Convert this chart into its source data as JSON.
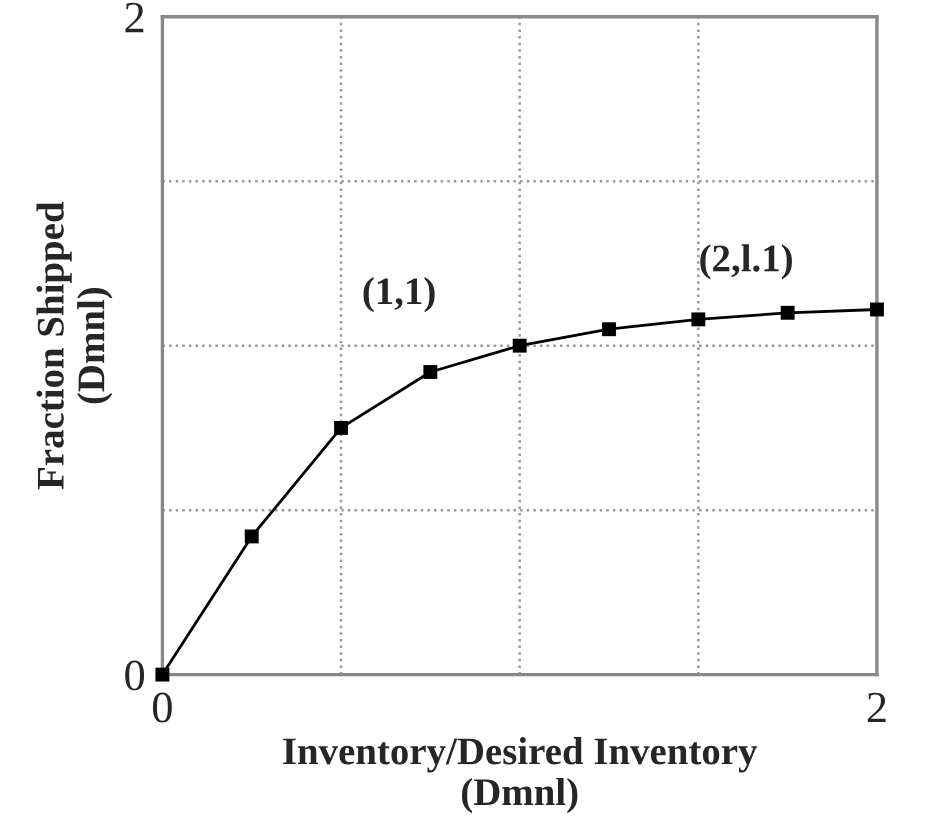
{
  "chart_data": {
    "type": "line",
    "xlabel": "Inventory/Desired Inventory\n(Dmnl)",
    "ylabel": "Fraction Shipped\n(Dmnl)",
    "x": [
      0,
      0.25,
      0.5,
      0.75,
      1,
      1.25,
      1.5,
      1.75,
      2
    ],
    "series": [
      {
        "color": "#000000",
        "values": [
          0,
          0.42,
          0.75,
          0.92,
          1.0,
          1.05,
          1.08,
          1.1,
          1.11
        ]
      }
    ],
    "xlim": [
      0,
      2
    ],
    "ylim": [
      0,
      2
    ],
    "xticks": [
      0,
      {
        "value": 0.5,
        "label": null
      },
      {
        "value": 1,
        "label": null
      },
      {
        "value": 1.5,
        "label": null
      },
      2
    ],
    "yticks": [
      0,
      {
        "value": 0.5,
        "label": null
      },
      {
        "value": 1,
        "label": null
      },
      {
        "value": 1.5,
        "label": null
      },
      2
    ],
    "grid": true,
    "marker": "square",
    "line_style": "solid",
    "annotations": [
      {
        "text": "(1,1)",
        "x": 1,
        "y": 1
      },
      {
        "text": "(2,l.1)",
        "x": 2,
        "y": 1.1
      }
    ]
  }
}
